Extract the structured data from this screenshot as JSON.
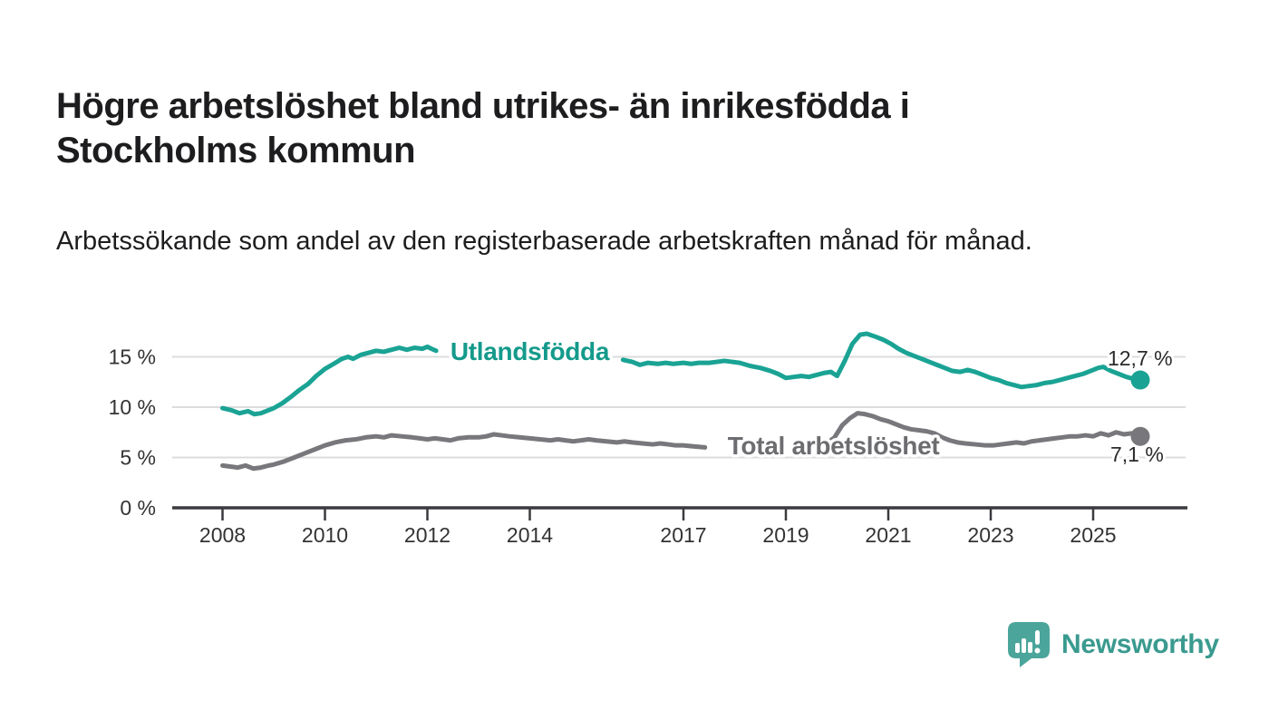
{
  "header": {
    "title": "Högre arbetslöshet bland utrikes- än inrikesfödda i Stockholms kommun",
    "subtitle": "Arbetssökande som andel av den registerbaserade arbetskraften månad för månad."
  },
  "chart_data": {
    "type": "line",
    "title": "Högre arbetslöshet bland utrikes- än inrikesfödda i Stockholms kommun",
    "subtitle": "Arbetssökande som andel av den registerbaserade arbetskraften månad för månad.",
    "unit": "%",
    "x_axis": {
      "ticks": [
        2008,
        2010,
        2012,
        2014,
        2017,
        2019,
        2021,
        2023,
        2025
      ],
      "range": [
        2007.0,
        2026.8
      ],
      "grid": false
    },
    "y_axis": {
      "ticks": [
        0,
        5,
        10,
        15
      ],
      "tick_labels": [
        "0 %",
        "5 %",
        "10 %",
        "15 %"
      ],
      "range": [
        0,
        18
      ],
      "grid": true
    },
    "axis_colors": {
      "axis": "#3b3b3f",
      "grid": "#dcdcde",
      "tick_text": "#333333"
    },
    "series": [
      {
        "name": "Utlandsfödda",
        "color": "#1aa394",
        "label_color": "#149a8b",
        "line_label": {
          "text": "Utlandsfödda",
          "x": 2014.0,
          "y": 14.68
        },
        "end_dot": {
          "x": 2025.92,
          "y": 12.7
        },
        "end_label": {
          "text": "12,7 %",
          "dx": -36,
          "dy": -16
        },
        "segments": [
          [
            [
              2008.0,
              9.9
            ],
            [
              2008.17,
              9.7
            ],
            [
              2008.33,
              9.4
            ],
            [
              2008.5,
              9.6
            ],
            [
              2008.62,
              9.3
            ],
            [
              2008.75,
              9.4
            ],
            [
              2008.9,
              9.7
            ],
            [
              2009.0,
              9.9
            ],
            [
              2009.17,
              10.4
            ],
            [
              2009.33,
              11.0
            ],
            [
              2009.5,
              11.7
            ],
            [
              2009.67,
              12.3
            ],
            [
              2009.83,
              13.1
            ],
            [
              2010.0,
              13.8
            ],
            [
              2010.17,
              14.3
            ],
            [
              2010.33,
              14.8
            ],
            [
              2010.45,
              15.0
            ],
            [
              2010.55,
              14.8
            ],
            [
              2010.7,
              15.2
            ],
            [
              2010.85,
              15.4
            ],
            [
              2011.0,
              15.6
            ],
            [
              2011.15,
              15.5
            ],
            [
              2011.3,
              15.7
            ],
            [
              2011.45,
              15.9
            ],
            [
              2011.6,
              15.7
            ],
            [
              2011.75,
              15.9
            ],
            [
              2011.9,
              15.8
            ],
            [
              2012.0,
              16.0
            ],
            [
              2012.08,
              15.8
            ],
            [
              2012.17,
              15.6
            ]
          ],
          [
            [
              2015.82,
              14.7
            ],
            [
              2016.0,
              14.5
            ],
            [
              2016.15,
              14.2
            ],
            [
              2016.3,
              14.4
            ],
            [
              2016.5,
              14.3
            ],
            [
              2016.65,
              14.4
            ],
            [
              2016.8,
              14.3
            ],
            [
              2017.0,
              14.4
            ],
            [
              2017.15,
              14.3
            ],
            [
              2017.3,
              14.4
            ],
            [
              2017.5,
              14.4
            ],
            [
              2017.65,
              14.5
            ],
            [
              2017.8,
              14.6
            ],
            [
              2017.95,
              14.5
            ],
            [
              2018.1,
              14.4
            ],
            [
              2018.3,
              14.1
            ],
            [
              2018.5,
              13.9
            ],
            [
              2018.7,
              13.6
            ],
            [
              2018.85,
              13.3
            ],
            [
              2019.0,
              12.9
            ],
            [
              2019.15,
              13.0
            ],
            [
              2019.3,
              13.1
            ],
            [
              2019.45,
              13.0
            ],
            [
              2019.6,
              13.2
            ],
            [
              2019.75,
              13.4
            ],
            [
              2019.88,
              13.5
            ],
            [
              2020.0,
              13.1
            ],
            [
              2020.15,
              14.6
            ],
            [
              2020.3,
              16.3
            ],
            [
              2020.45,
              17.2
            ],
            [
              2020.58,
              17.3
            ],
            [
              2020.75,
              17.0
            ],
            [
              2020.9,
              16.7
            ],
            [
              2021.05,
              16.3
            ],
            [
              2021.2,
              15.8
            ],
            [
              2021.35,
              15.4
            ],
            [
              2021.5,
              15.1
            ],
            [
              2021.65,
              14.8
            ],
            [
              2021.8,
              14.5
            ],
            [
              2021.95,
              14.2
            ],
            [
              2022.1,
              13.9
            ],
            [
              2022.25,
              13.6
            ],
            [
              2022.4,
              13.5
            ],
            [
              2022.55,
              13.7
            ],
            [
              2022.7,
              13.5
            ],
            [
              2022.85,
              13.2
            ],
            [
              2023.0,
              12.9
            ],
            [
              2023.15,
              12.7
            ],
            [
              2023.3,
              12.4
            ],
            [
              2023.45,
              12.2
            ],
            [
              2023.6,
              12.0
            ],
            [
              2023.75,
              12.1
            ],
            [
              2023.9,
              12.2
            ],
            [
              2024.05,
              12.4
            ],
            [
              2024.2,
              12.5
            ],
            [
              2024.35,
              12.7
            ],
            [
              2024.5,
              12.9
            ],
            [
              2024.65,
              13.1
            ],
            [
              2024.8,
              13.3
            ],
            [
              2024.95,
              13.6
            ],
            [
              2025.1,
              13.9
            ],
            [
              2025.2,
              14.0
            ],
            [
              2025.35,
              13.6
            ],
            [
              2025.5,
              13.3
            ],
            [
              2025.65,
              13.0
            ],
            [
              2025.8,
              12.8
            ],
            [
              2025.92,
              12.7
            ]
          ]
        ]
      },
      {
        "name": "Total arbetslöshet",
        "color": "#78787c",
        "label_color": "#6d6d71",
        "line_label": {
          "text": "Total arbetslöshet",
          "x": 2019.93,
          "y": 5.32
        },
        "end_dot": {
          "x": 2025.92,
          "y": 7.1
        },
        "end_label": {
          "text": "7,1 %",
          "dx": -33,
          "dy": 28
        },
        "segments": [
          [
            [
              2008.0,
              4.2
            ],
            [
              2008.15,
              4.1
            ],
            [
              2008.3,
              4.0
            ],
            [
              2008.45,
              4.2
            ],
            [
              2008.6,
              3.9
            ],
            [
              2008.75,
              4.0
            ],
            [
              2008.9,
              4.2
            ],
            [
              2009.0,
              4.3
            ],
            [
              2009.2,
              4.6
            ],
            [
              2009.4,
              5.0
            ],
            [
              2009.6,
              5.4
            ],
            [
              2009.8,
              5.8
            ],
            [
              2010.0,
              6.2
            ],
            [
              2010.2,
              6.5
            ],
            [
              2010.4,
              6.7
            ],
            [
              2010.6,
              6.8
            ],
            [
              2010.8,
              7.0
            ],
            [
              2011.0,
              7.1
            ],
            [
              2011.15,
              7.0
            ],
            [
              2011.3,
              7.2
            ],
            [
              2011.5,
              7.1
            ],
            [
              2011.7,
              7.0
            ],
            [
              2011.85,
              6.9
            ],
            [
              2012.0,
              6.8
            ],
            [
              2012.15,
              6.9
            ],
            [
              2012.3,
              6.8
            ],
            [
              2012.45,
              6.7
            ],
            [
              2012.6,
              6.9
            ],
            [
              2012.8,
              7.0
            ],
            [
              2013.0,
              7.0
            ],
            [
              2013.15,
              7.1
            ],
            [
              2013.3,
              7.3
            ],
            [
              2013.45,
              7.2
            ],
            [
              2013.6,
              7.1
            ],
            [
              2013.8,
              7.0
            ],
            [
              2014.0,
              6.9
            ],
            [
              2014.2,
              6.8
            ],
            [
              2014.4,
              6.7
            ],
            [
              2014.55,
              6.8
            ],
            [
              2014.7,
              6.7
            ],
            [
              2014.85,
              6.6
            ],
            [
              2015.0,
              6.7
            ],
            [
              2015.15,
              6.8
            ],
            [
              2015.3,
              6.7
            ],
            [
              2015.5,
              6.6
            ],
            [
              2015.7,
              6.5
            ],
            [
              2015.85,
              6.6
            ],
            [
              2016.0,
              6.5
            ],
            [
              2016.2,
              6.4
            ],
            [
              2016.4,
              6.3
            ],
            [
              2016.55,
              6.4
            ],
            [
              2016.7,
              6.3
            ],
            [
              2016.85,
              6.2
            ],
            [
              2017.0,
              6.2
            ],
            [
              2017.2,
              6.1
            ],
            [
              2017.42,
              6.0
            ]
          ],
          [
            [
              2019.8,
              6.4
            ],
            [
              2019.95,
              7.0
            ],
            [
              2020.1,
              8.2
            ],
            [
              2020.25,
              8.9
            ],
            [
              2020.4,
              9.4
            ],
            [
              2020.55,
              9.3
            ],
            [
              2020.7,
              9.1
            ],
            [
              2020.85,
              8.8
            ],
            [
              2021.0,
              8.6
            ],
            [
              2021.15,
              8.3
            ],
            [
              2021.3,
              8.0
            ],
            [
              2021.45,
              7.8
            ],
            [
              2021.6,
              7.7
            ],
            [
              2021.75,
              7.6
            ],
            [
              2021.9,
              7.4
            ],
            [
              2022.05,
              7.0
            ],
            [
              2022.2,
              6.7
            ],
            [
              2022.35,
              6.5
            ],
            [
              2022.5,
              6.4
            ],
            [
              2022.7,
              6.3
            ],
            [
              2022.9,
              6.2
            ],
            [
              2023.05,
              6.2
            ],
            [
              2023.2,
              6.3
            ],
            [
              2023.35,
              6.4
            ],
            [
              2023.5,
              6.5
            ],
            [
              2023.65,
              6.4
            ],
            [
              2023.8,
              6.6
            ],
            [
              2023.95,
              6.7
            ],
            [
              2024.1,
              6.8
            ],
            [
              2024.25,
              6.9
            ],
            [
              2024.4,
              7.0
            ],
            [
              2024.55,
              7.1
            ],
            [
              2024.7,
              7.1
            ],
            [
              2024.85,
              7.2
            ],
            [
              2025.0,
              7.1
            ],
            [
              2025.15,
              7.4
            ],
            [
              2025.3,
              7.2
            ],
            [
              2025.45,
              7.5
            ],
            [
              2025.6,
              7.3
            ],
            [
              2025.75,
              7.4
            ],
            [
              2025.92,
              7.1
            ]
          ]
        ]
      }
    ]
  },
  "branding": {
    "name": "Newsworthy",
    "color": "#3a9a8f",
    "mark_color": "#4ba59b"
  }
}
